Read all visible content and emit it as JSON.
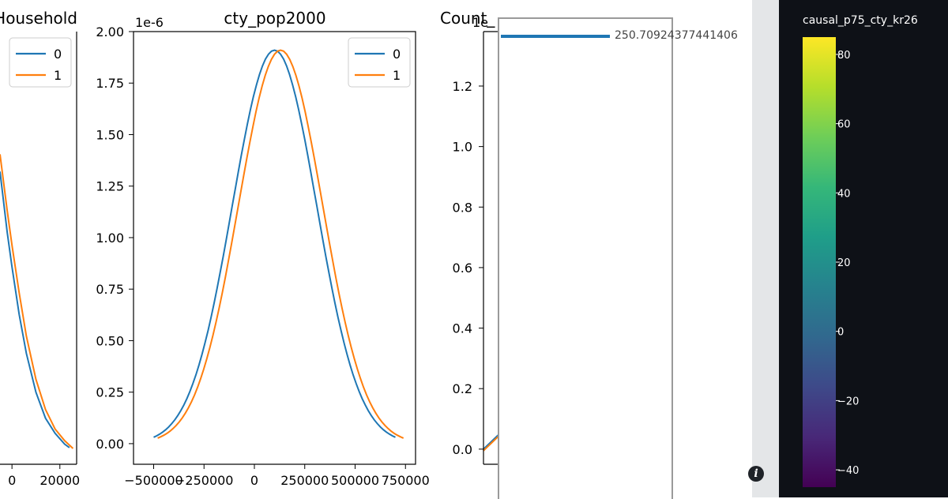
{
  "chart_data": [
    {
      "type": "line",
      "title": "SpeakingHousehold",
      "x_tick_labels": [
        "0",
        "20000"
      ],
      "x_ticks": [
        0,
        20000
      ],
      "xlim": [
        -5000,
        27000
      ],
      "ylim": [
        0,
        1
      ],
      "legend": {
        "placement": "top-right",
        "entries": [
          "0",
          "1"
        ]
      },
      "series": [
        {
          "name": "0",
          "color": "#1f77b4",
          "x": [
            -5000,
            -2000,
            0,
            3000,
            6000,
            10000,
            14000,
            18000,
            22000,
            24000
          ],
          "y": [
            0.64,
            0.5,
            0.42,
            0.31,
            0.22,
            0.13,
            0.07,
            0.035,
            0.01,
            0.002
          ]
        },
        {
          "name": "1",
          "color": "#ff7f0e",
          "x": [
            -5000,
            -2000,
            0,
            3000,
            6000,
            10000,
            14000,
            18000,
            22000,
            25500
          ],
          "y": [
            0.68,
            0.55,
            0.47,
            0.36,
            0.26,
            0.16,
            0.09,
            0.045,
            0.018,
            0.0
          ]
        }
      ]
    },
    {
      "type": "line",
      "title": "cty_pop2000",
      "y_scale_label": "1e-6",
      "ylim": [
        -0.1,
        2.0
      ],
      "xlim": [
        -600000,
        800000
      ],
      "x_ticks": [
        -500000,
        -250000,
        0,
        250000,
        500000,
        750000
      ],
      "x_tick_labels": [
        "−500000",
        "−250000",
        "0",
        "250000",
        "500000",
        "750000"
      ],
      "y_ticks": [
        0.0,
        0.25,
        0.5,
        0.75,
        1.0,
        1.25,
        1.5,
        1.75,
        2.0
      ],
      "y_tick_labels": [
        "0.00",
        "0.25",
        "0.50",
        "0.75",
        "1.00",
        "1.25",
        "1.50",
        "1.75",
        "2.00"
      ],
      "legend": {
        "placement": "top-right",
        "entries": [
          "0",
          "1"
        ]
      },
      "series": [
        {
          "name": "0",
          "color": "#1f77b4",
          "curve": "gaussian",
          "mean": 100000,
          "sd": 209000,
          "peak": 1.91,
          "x_start": -500000,
          "x_end": 700000
        },
        {
          "name": "1",
          "color": "#ff7f0e",
          "curve": "gaussian",
          "mean": 130000,
          "sd": 209000,
          "peak": 1.91,
          "x_start": -480000,
          "x_end": 740000
        }
      ]
    },
    {
      "type": "line",
      "title": "Count_",
      "y_scale_label": "1e",
      "ylim": [
        -0.05,
        1.38
      ],
      "y_ticks": [
        0.0,
        0.2,
        0.4,
        0.6,
        0.8,
        1.0,
        1.2
      ],
      "y_tick_labels": [
        "0.0",
        "0.2",
        "0.4",
        "0.6",
        "0.8",
        "1.0",
        "1.2"
      ],
      "series": [
        {
          "name": "0",
          "color": "#1f77b4",
          "x": [
            0,
            1,
            2,
            3,
            4,
            5
          ],
          "y": [
            0.0,
            0.01,
            0.02,
            0.03,
            0.04,
            0.05
          ]
        },
        {
          "name": "1",
          "color": "#ff7f0e",
          "x": [
            0,
            1,
            2,
            3,
            4,
            5
          ],
          "y": [
            -0.005,
            0.005,
            0.015,
            0.025,
            0.035,
            0.045
          ]
        }
      ]
    }
  ],
  "tooltip": {
    "value": "250.70924377441406",
    "bar_color": "#1f77b4"
  },
  "colorbar": {
    "title": "causal_p75_cty_kr26",
    "range": [
      -45,
      85
    ],
    "ticks": [
      80,
      60,
      40,
      20,
      0,
      -20,
      -40
    ],
    "tick_labels": [
      "80",
      "60",
      "40",
      "20",
      "0",
      "−20",
      "−40"
    ],
    "colormap": "viridis",
    "colors": [
      "#440154",
      "#482878",
      "#3e4989",
      "#31688e",
      "#26828e",
      "#1f9e89",
      "#35b779",
      "#6ece58",
      "#b5de2b",
      "#fde725"
    ]
  },
  "info_icon": "info-icon"
}
